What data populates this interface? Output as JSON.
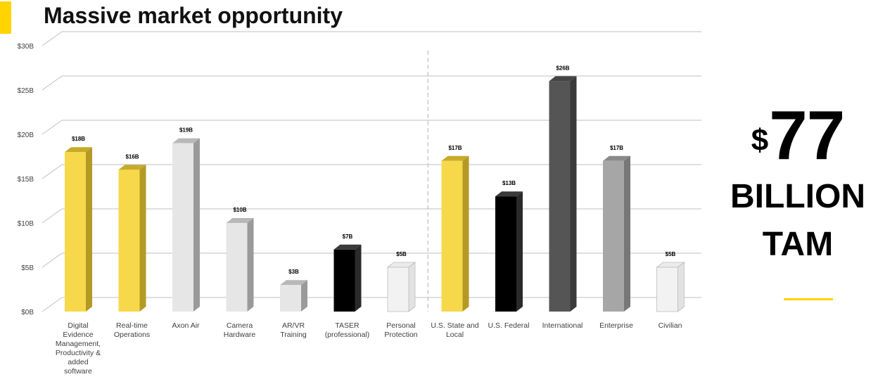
{
  "slide": {
    "title": "Massive market opportunity"
  },
  "tam": {
    "currency_symbol": "$",
    "value": "77",
    "line1": "BILLION",
    "line2": "TAM"
  },
  "colors": {
    "accent": "#FFD400",
    "yellow_bar": "#F7D84A",
    "light_gray_bar": "#E6E6E6",
    "black_bar": "#000000",
    "dark_gray_bar": "#555555",
    "mid_gray_bar": "#A6A6A6",
    "outline_bar": "#F2F2F2"
  },
  "chart_data": {
    "type": "bar",
    "title": "",
    "xlabel": "",
    "ylabel": "",
    "ylim": [
      0,
      30
    ],
    "y_ticks": [
      0,
      5,
      10,
      15,
      20,
      25,
      30
    ],
    "y_tick_labels": [
      "$0B",
      "$5B",
      "$10B",
      "$15B",
      "$20B",
      "$25B",
      "$30B"
    ],
    "grid": true,
    "legend": "none",
    "divider_after_index": 6,
    "categories": [
      "Digital Evidence Management, Productivity & added software",
      "Real-time Operations",
      "Axon Air",
      "Camera Hardware",
      "AR/VR Training",
      "TASER (professional)",
      "Personal Protection",
      "U.S. State and Local",
      "U.S. Federal",
      "International",
      "Enterprise",
      "Civilian"
    ],
    "category_lines": [
      [
        "Digital",
        "Evidence",
        "Management,",
        "Productivity &",
        "added",
        "software"
      ],
      [
        "Real-time",
        "Operations"
      ],
      [
        "Axon Air"
      ],
      [
        "Camera",
        "Hardware"
      ],
      [
        "AR/VR",
        "Training"
      ],
      [
        "TASER",
        "(professional)"
      ],
      [
        "Personal",
        "Protection"
      ],
      [
        "U.S. State and",
        "Local"
      ],
      [
        "U.S. Federal"
      ],
      [
        "International"
      ],
      [
        "Enterprise"
      ],
      [
        "Civilian"
      ]
    ],
    "values": [
      18,
      16,
      19,
      10,
      3,
      7,
      5,
      17,
      13,
      26,
      17,
      5
    ],
    "value_labels": [
      "$18B",
      "$16B",
      "$19B",
      "$10B",
      "$3B",
      "$7B",
      "$5B",
      "$17B",
      "$13B",
      "$26B",
      "$17B",
      "$5B"
    ],
    "bar_styles": [
      "yellow",
      "yellow",
      "lightgray",
      "lightgray",
      "lightgray",
      "black",
      "outline",
      "yellow",
      "black",
      "darkgray",
      "midgray",
      "outline"
    ]
  }
}
